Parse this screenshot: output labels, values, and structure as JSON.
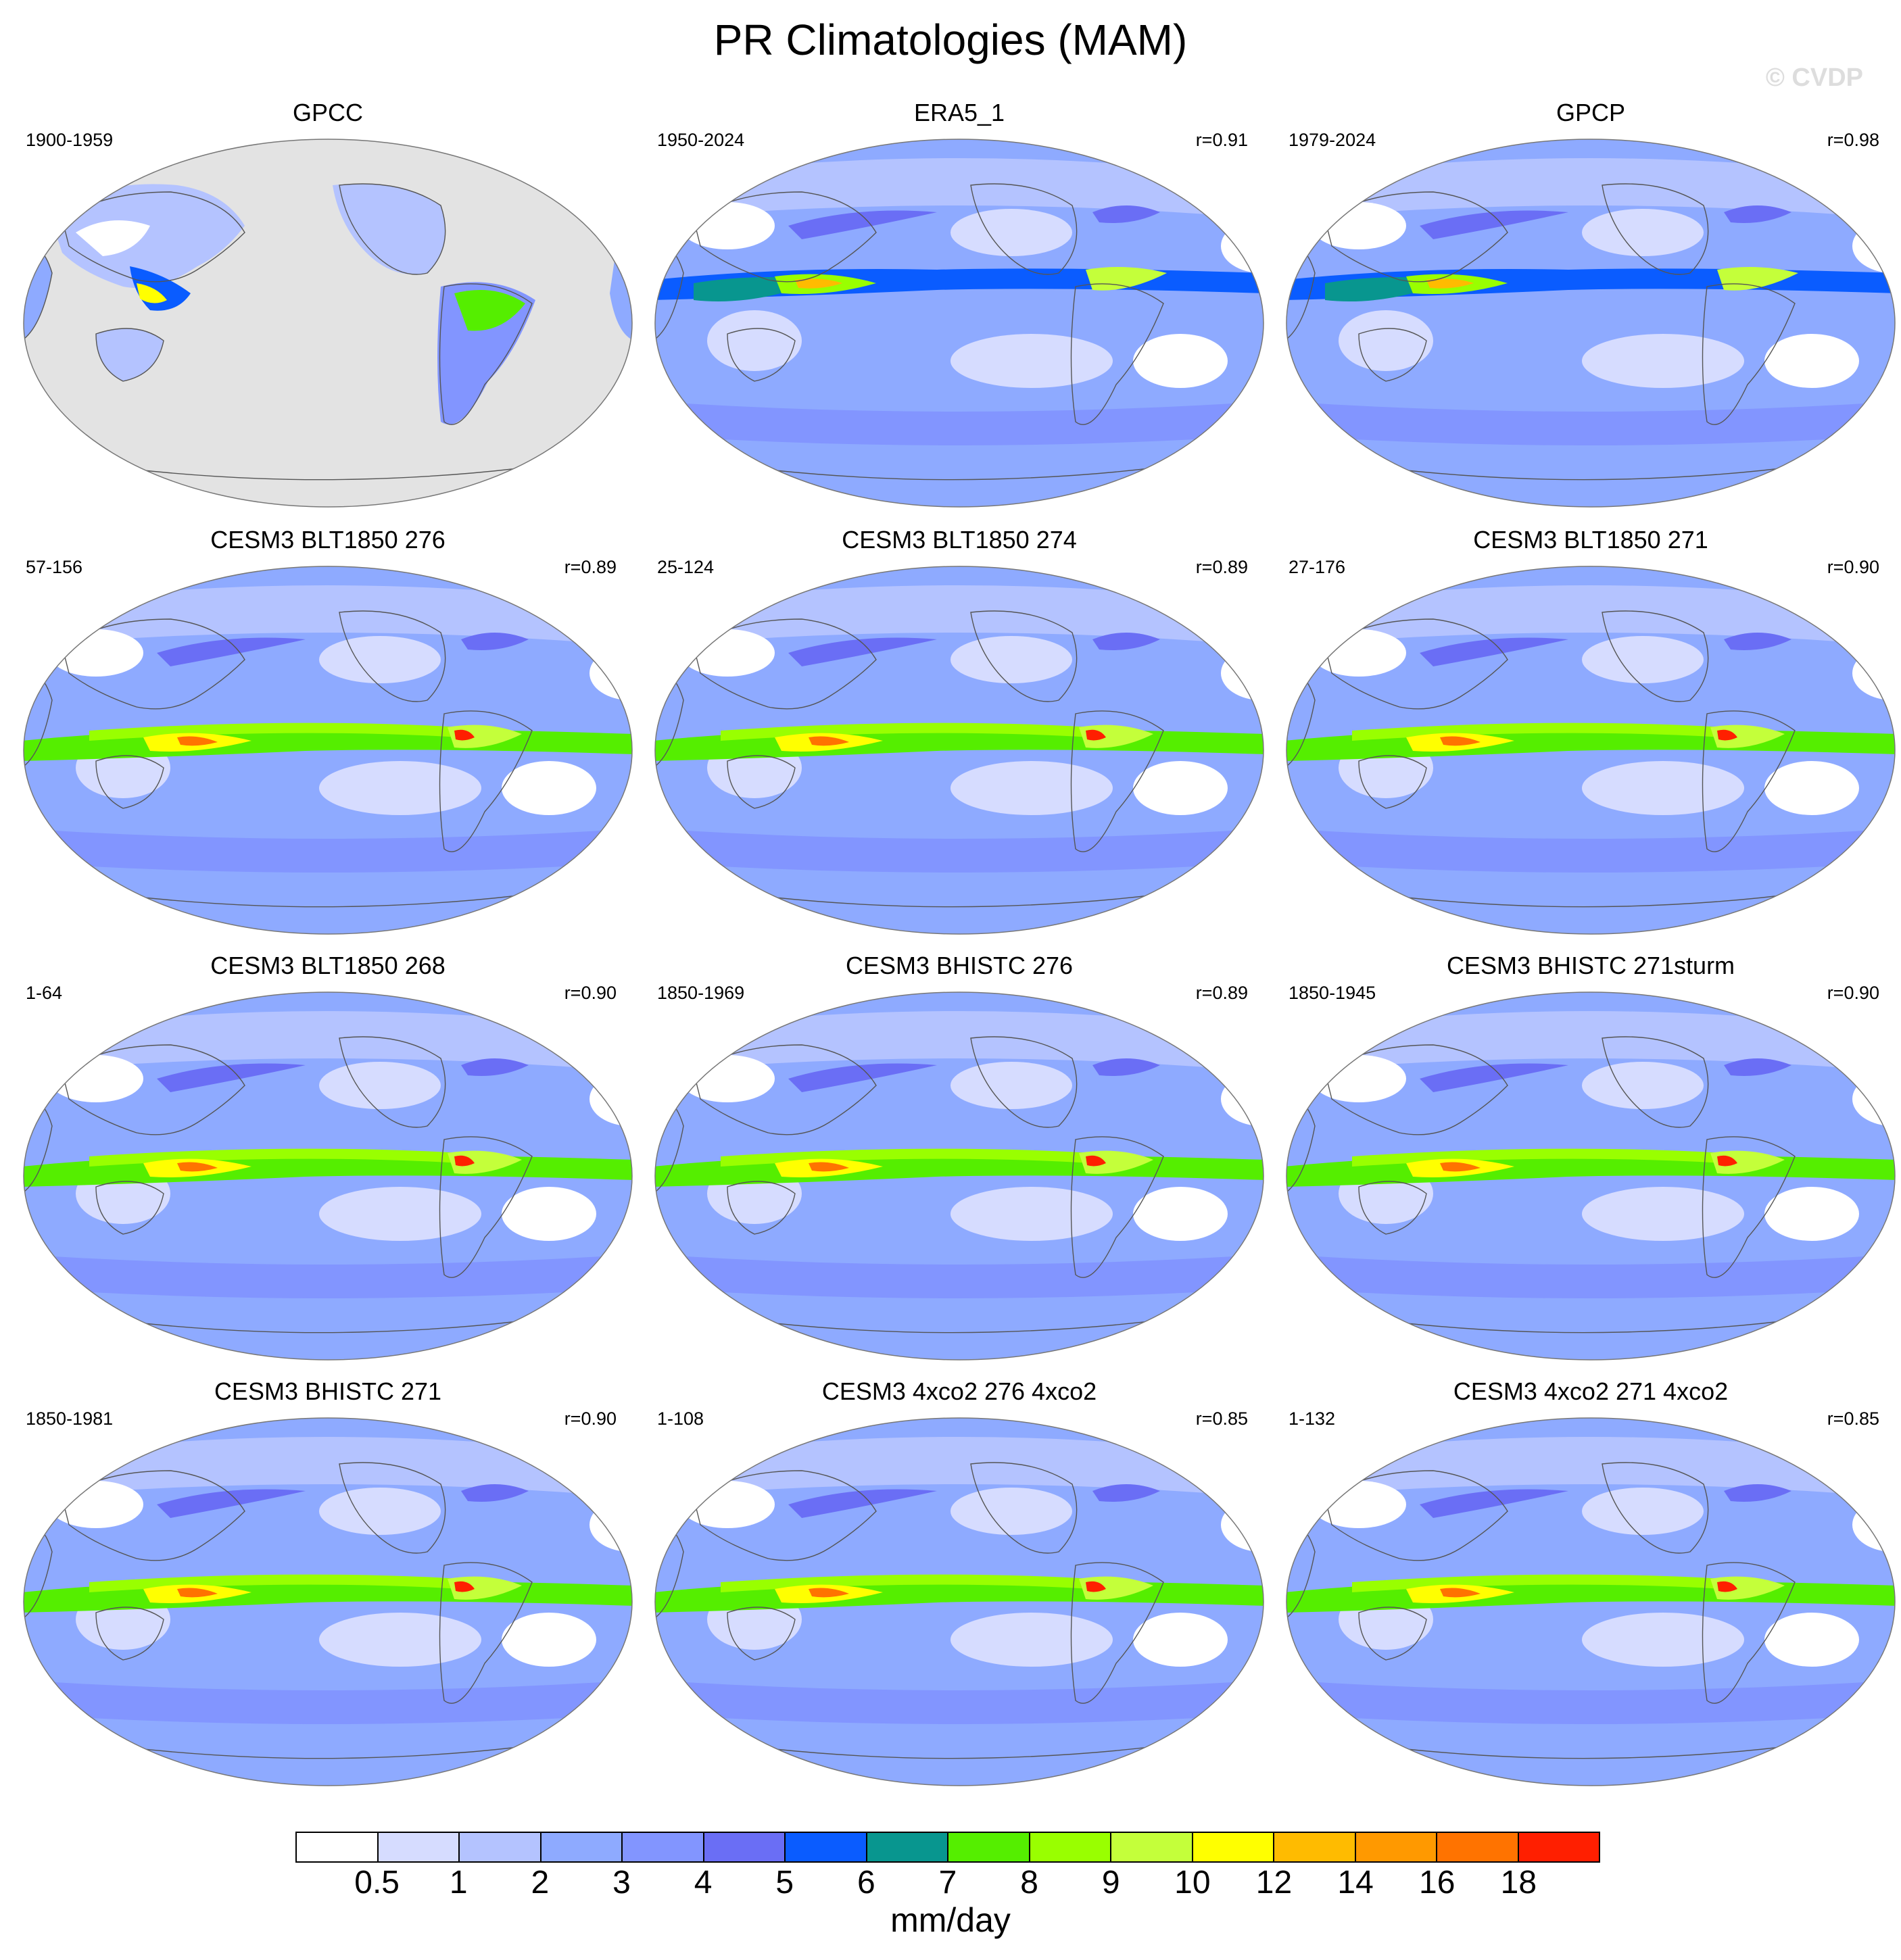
{
  "title": "PR Climatologies (MAM)",
  "watermark": "© CVDP",
  "panels": [
    {
      "title": "GPCC",
      "years": "1900-1959",
      "corr": "",
      "style": "gpcc"
    },
    {
      "title": "ERA5_1",
      "years": "1950-2024",
      "corr": "r=0.91",
      "style": "era5"
    },
    {
      "title": "GPCP",
      "years": "1979-2024",
      "corr": "r=0.98",
      "style": "gpcp"
    },
    {
      "title": "CESM3 BLT1850 276",
      "years": "57-156",
      "corr": "r=0.89",
      "style": "model"
    },
    {
      "title": "CESM3 BLT1850 274",
      "years": "25-124",
      "corr": "r=0.89",
      "style": "model"
    },
    {
      "title": "CESM3 BLT1850 271",
      "years": "27-176",
      "corr": "r=0.90",
      "style": "model"
    },
    {
      "title": "CESM3 BLT1850 268",
      "years": "1-64",
      "corr": "r=0.90",
      "style": "model"
    },
    {
      "title": "CESM3 BHISTC 276",
      "years": "1850-1969",
      "corr": "r=0.89",
      "style": "model"
    },
    {
      "title": "CESM3 BHISTC 271sturm",
      "years": "1850-1945",
      "corr": "r=0.90",
      "style": "model"
    },
    {
      "title": "CESM3 BHISTC 271",
      "years": "1850-1981",
      "corr": "r=0.90",
      "style": "model"
    },
    {
      "title": "CESM3 4xco2 276 4xco2",
      "years": "1-108",
      "corr": "r=0.85",
      "style": "model"
    },
    {
      "title": "CESM3 4xco2 271 4xco2",
      "years": "1-132",
      "corr": "r=0.85",
      "style": "model"
    }
  ],
  "colorbar": {
    "units": "mm/day",
    "levels": [
      "0.5",
      "1",
      "2",
      "3",
      "4",
      "5",
      "6",
      "7",
      "8",
      "9",
      "10",
      "12",
      "14",
      "16",
      "18"
    ],
    "colors": [
      "#ffffff",
      "#d6dcff",
      "#b4c3ff",
      "#8eaaff",
      "#8295ff",
      "#6a6ef5",
      "#0a5cff",
      "#08968f",
      "#55ee00",
      "#99ff00",
      "#c4ff3a",
      "#ffff00",
      "#ffbb00",
      "#ff9900",
      "#ff7300",
      "#ff1f00"
    ]
  }
}
